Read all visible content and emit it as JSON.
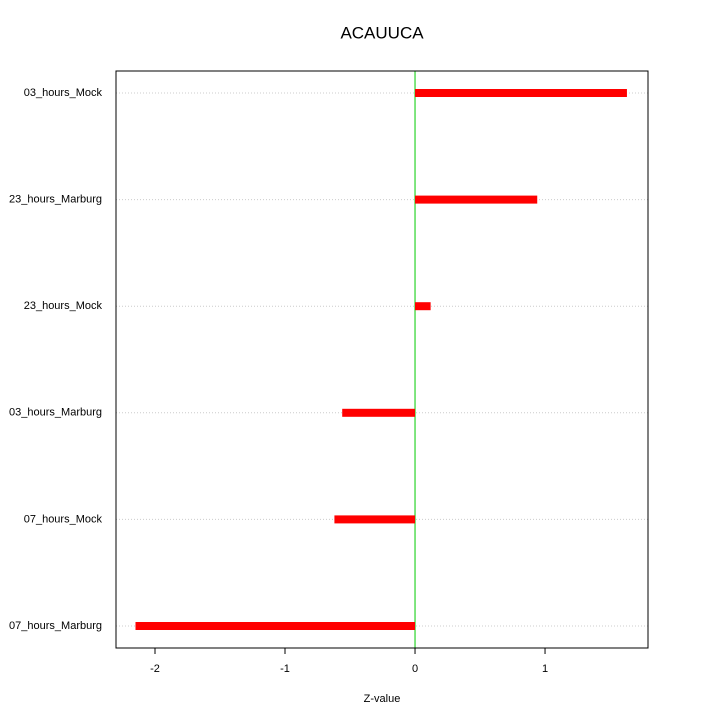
{
  "chart_data": {
    "type": "bar",
    "orientation": "horizontal",
    "title": "ACAUUCA",
    "x_label": "Z-value",
    "categories": [
      "03_hours_Mock",
      "23_hours_Marburg",
      "23_hours_Mock",
      "03_hours_Marburg",
      "07_hours_Mock",
      "07_hours_Marburg"
    ],
    "values": [
      1.63,
      0.94,
      0.12,
      -0.56,
      -0.62,
      -2.15
    ],
    "color": "#ff0000",
    "xlim": [
      -2.3,
      1.792
    ],
    "xticks": [
      -2,
      -1,
      0,
      1
    ],
    "grid": true
  }
}
